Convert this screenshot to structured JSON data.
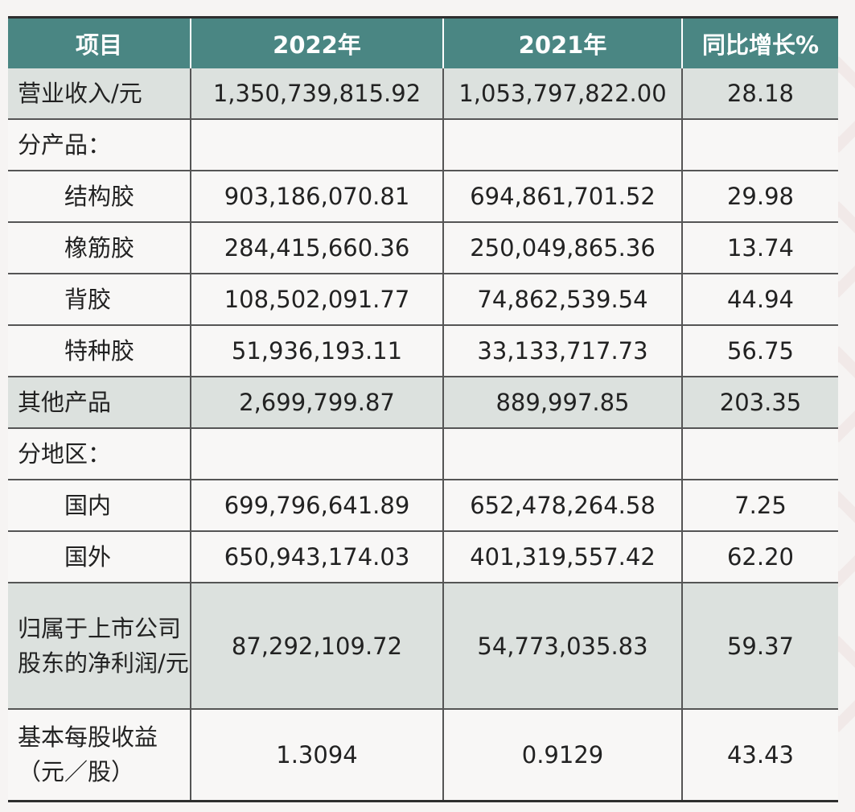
{
  "table": {
    "headers": [
      "项目",
      "2022年",
      "2021年",
      "同比增长%"
    ],
    "rows": [
      {
        "label": "营业收入/元",
        "y2022": "1,350,739,815.92",
        "y2021": "1,053,797,822.00",
        "growth": "28.18"
      },
      {
        "label": "分产品：",
        "y2022": "",
        "y2021": "",
        "growth": ""
      },
      {
        "label": "结构胶",
        "y2022": "903,186,070.81",
        "y2021": "694,861,701.52",
        "growth": "29.98"
      },
      {
        "label": "橡筋胶",
        "y2022": "284,415,660.36",
        "y2021": "250,049,865.36",
        "growth": "13.74"
      },
      {
        "label": "背胶",
        "y2022": "108,502,091.77",
        "y2021": "74,862,539.54",
        "growth": "44.94"
      },
      {
        "label": "特种胶",
        "y2022": "51,936,193.11",
        "y2021": "33,133,717.73",
        "growth": "56.75"
      },
      {
        "label": "其他产品",
        "y2022": "2,699,799.87",
        "y2021": "889,997.85",
        "growth": "203.35"
      },
      {
        "label": "分地区：",
        "y2022": "",
        "y2021": "",
        "growth": ""
      },
      {
        "label": "国内",
        "y2022": "699,796,641.89",
        "y2021": "652,478,264.58",
        "growth": "7.25"
      },
      {
        "label": "国外",
        "y2022": "650,943,174.03",
        "y2021": "401,319,557.42",
        "growth": "62.20"
      },
      {
        "label": "归属于上市公司股东的净利润/元",
        "y2022": "87,292,109.72",
        "y2021": "54,773,035.83",
        "growth": "59.37"
      },
      {
        "label": "基本每股收益（元／股）",
        "y2022": "1.3094",
        "y2021": "0.9129",
        "growth": "43.43"
      }
    ]
  }
}
